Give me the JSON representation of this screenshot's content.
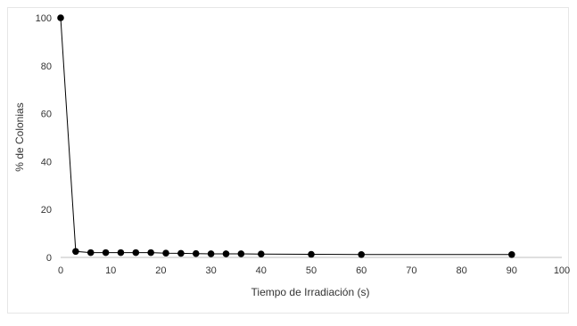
{
  "chart_data": {
    "type": "line",
    "title": "",
    "xlabel": "Tiempo de Irradiación (s)",
    "ylabel": "% de Colonias",
    "xlim": [
      0,
      100
    ],
    "ylim": [
      0,
      100
    ],
    "x_ticks": [
      0,
      10,
      20,
      30,
      40,
      50,
      60,
      70,
      80,
      90,
      100
    ],
    "y_ticks": [
      0,
      20,
      40,
      60,
      80,
      100
    ],
    "grid": false,
    "legend": "none",
    "series": [
      {
        "color": "#000000",
        "marker": "circle",
        "x": [
          0,
          3,
          6,
          9,
          12,
          15,
          18,
          21,
          24,
          27,
          30,
          33,
          36,
          40,
          50,
          60,
          90
        ],
        "y": [
          100,
          2.5,
          2,
          2,
          2,
          2,
          2,
          1.8,
          1.7,
          1.6,
          1.5,
          1.5,
          1.5,
          1.4,
          1.3,
          1.2,
          1.2
        ]
      }
    ]
  }
}
